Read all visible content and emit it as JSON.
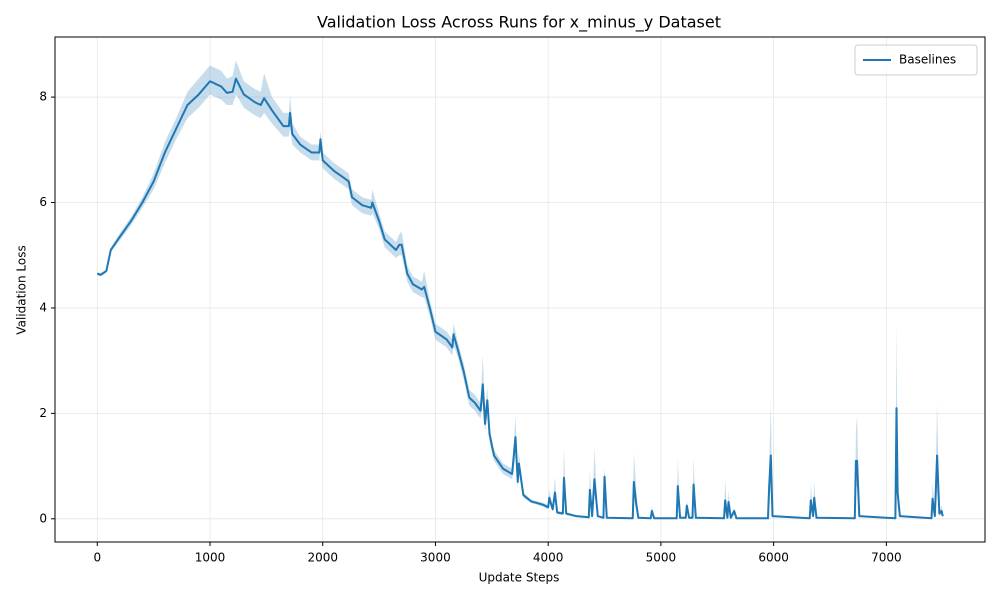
{
  "chart_data": {
    "type": "line",
    "title": "Validation Loss Across Runs for x_minus_y Dataset",
    "xlabel": "Update Steps",
    "ylabel": "Validation Loss",
    "xlim": [
      -375,
      7875
    ],
    "ylim": [
      -0.44,
      9.14
    ],
    "xticks": [
      0,
      1000,
      2000,
      3000,
      4000,
      5000,
      6000,
      7000
    ],
    "yticks": [
      0,
      2,
      4,
      6,
      8
    ],
    "grid": true,
    "legend": "upper right",
    "x": [
      0,
      30,
      80,
      120,
      200,
      300,
      400,
      500,
      600,
      700,
      800,
      900,
      1000,
      1100,
      1150,
      1200,
      1230,
      1300,
      1400,
      1450,
      1480,
      1550,
      1650,
      1700,
      1710,
      1730,
      1800,
      1900,
      1970,
      1980,
      2000,
      2100,
      2200,
      2230,
      2260,
      2350,
      2430,
      2440,
      2500,
      2550,
      2650,
      2680,
      2700,
      2750,
      2800,
      2880,
      2900,
      2950,
      3000,
      3100,
      3150,
      3160,
      3200,
      3250,
      3300,
      3350,
      3400,
      3420,
      3440,
      3460,
      3480,
      3520,
      3600,
      3680,
      3710,
      3730,
      3740,
      3780,
      3850,
      3950,
      4000,
      4010,
      4040,
      4060,
      4080,
      4130,
      4140,
      4160,
      4250,
      4360,
      4370,
      4390,
      4410,
      4440,
      4490,
      4500,
      4520,
      4750,
      4760,
      4780,
      4800,
      4910,
      4920,
      4940,
      5140,
      5150,
      5170,
      5220,
      5230,
      5250,
      5280,
      5290,
      5310,
      5560,
      5570,
      5590,
      5600,
      5620,
      5650,
      5670,
      5950,
      5960,
      5975,
      5990,
      6320,
      6330,
      6350,
      6360,
      6380,
      6720,
      6730,
      6740,
      6760,
      7080,
      7090,
      7100,
      7120,
      7400,
      7410,
      7430,
      7450,
      7470,
      7490,
      7500
    ],
    "series": [
      {
        "name": "Baselines",
        "color": "#1f77b4",
        "values": [
          4.65,
          4.63,
          4.7,
          5.1,
          5.35,
          5.65,
          6.0,
          6.4,
          6.95,
          7.4,
          7.85,
          8.05,
          8.3,
          8.2,
          8.08,
          8.1,
          8.35,
          8.05,
          7.9,
          7.85,
          7.98,
          7.75,
          7.45,
          7.45,
          7.7,
          7.3,
          7.1,
          6.95,
          6.95,
          7.2,
          6.8,
          6.6,
          6.45,
          6.4,
          6.1,
          5.95,
          5.9,
          6.0,
          5.65,
          5.3,
          5.1,
          5.2,
          5.2,
          4.65,
          4.45,
          4.35,
          4.4,
          4.0,
          3.55,
          3.4,
          3.25,
          3.5,
          3.2,
          2.8,
          2.3,
          2.2,
          2.05,
          2.55,
          1.8,
          2.25,
          1.6,
          1.2,
          0.95,
          0.85,
          1.55,
          0.7,
          1.05,
          0.45,
          0.33,
          0.27,
          0.22,
          0.4,
          0.18,
          0.5,
          0.12,
          0.1,
          0.78,
          0.1,
          0.05,
          0.03,
          0.55,
          0.05,
          0.75,
          0.05,
          0.02,
          0.8,
          0.02,
          0.01,
          0.7,
          0.3,
          0.02,
          0.01,
          0.15,
          0.01,
          0.01,
          0.62,
          0.02,
          0.02,
          0.25,
          0.02,
          0.02,
          0.65,
          0.02,
          0.01,
          0.35,
          0.02,
          0.32,
          0.02,
          0.15,
          0.01,
          0.01,
          0.6,
          1.2,
          0.05,
          0.01,
          0.35,
          0.05,
          0.4,
          0.02,
          0.01,
          1.1,
          1.1,
          0.05,
          0.01,
          2.1,
          0.5,
          0.05,
          0.01,
          0.38,
          0.05,
          1.2,
          0.1,
          0.15,
          0.05
        ],
        "lower": [
          4.62,
          4.6,
          4.67,
          5.06,
          5.28,
          5.57,
          5.9,
          6.25,
          6.75,
          7.2,
          7.6,
          7.8,
          8.05,
          7.95,
          7.85,
          7.85,
          8.05,
          7.8,
          7.65,
          7.6,
          7.7,
          7.5,
          7.25,
          7.25,
          7.4,
          7.1,
          6.95,
          6.8,
          6.8,
          7.0,
          6.65,
          6.45,
          6.3,
          6.25,
          5.95,
          5.8,
          5.75,
          5.8,
          5.5,
          5.15,
          4.95,
          5.0,
          5.0,
          4.5,
          4.3,
          4.2,
          4.2,
          3.85,
          3.4,
          3.25,
          3.1,
          3.3,
          3.05,
          2.65,
          2.15,
          2.05,
          1.9,
          2.2,
          1.65,
          2.0,
          1.45,
          1.1,
          0.85,
          0.75,
          1.2,
          0.6,
          0.85,
          0.4,
          0.3,
          0.23,
          0.18,
          0.3,
          0.14,
          0.35,
          0.09,
          0.07,
          0.55,
          0.07,
          0.03,
          0.01,
          0.35,
          0.03,
          0.5,
          0.03,
          0.01,
          0.6,
          0.01,
          0,
          0.4,
          0.15,
          0.01,
          0,
          0.1,
          0,
          0,
          0.35,
          0.01,
          0.01,
          0.15,
          0.01,
          0.01,
          0.4,
          0.01,
          0,
          0.15,
          0.01,
          0.15,
          0.01,
          0.08,
          0,
          0,
          0.3,
          0.6,
          0.03,
          0,
          0.15,
          0.03,
          0.2,
          0.01,
          0,
          0.6,
          0.6,
          0.03,
          0,
          0.8,
          0.2,
          0.03,
          0,
          0.15,
          0.03,
          0.5,
          0.05,
          0.08,
          0.03
        ],
        "upper": [
          4.68,
          4.66,
          4.73,
          5.14,
          5.42,
          5.73,
          6.1,
          6.55,
          7.15,
          7.6,
          8.1,
          8.35,
          8.6,
          8.5,
          8.35,
          8.4,
          8.7,
          8.3,
          8.15,
          8.1,
          8.45,
          8.0,
          7.7,
          7.7,
          8.05,
          7.5,
          7.25,
          7.1,
          7.1,
          7.35,
          6.95,
          6.75,
          6.6,
          6.55,
          6.25,
          6.1,
          6.05,
          6.25,
          5.8,
          5.45,
          5.25,
          5.4,
          5.45,
          4.8,
          4.6,
          4.5,
          4.7,
          4.15,
          3.7,
          3.55,
          3.4,
          3.7,
          3.35,
          2.95,
          2.45,
          2.35,
          2.2,
          3.1,
          2.0,
          2.5,
          1.75,
          1.3,
          1.05,
          0.95,
          1.95,
          0.8,
          1.25,
          0.5,
          0.36,
          0.31,
          0.26,
          0.55,
          0.22,
          0.8,
          0.15,
          0.13,
          1.35,
          0.13,
          0.07,
          0.05,
          0.95,
          0.07,
          1.35,
          0.07,
          0.03,
          1.0,
          0.03,
          0.02,
          1.25,
          0.6,
          0.03,
          0.02,
          0.25,
          0.02,
          0.02,
          1.15,
          0.03,
          0.03,
          0.35,
          0.03,
          0.03,
          1.15,
          0.03,
          0.02,
          0.75,
          0.03,
          0.55,
          0.03,
          0.2,
          0.02,
          0.02,
          1.0,
          2.2,
          0.07,
          0.02,
          0.65,
          0.07,
          0.7,
          0.03,
          0.02,
          1.7,
          1.95,
          0.07,
          0.02,
          3.7,
          0.9,
          0.07,
          0.02,
          0.7,
          0.07,
          2.2,
          0.15,
          0.25,
          0.07
        ]
      }
    ]
  }
}
